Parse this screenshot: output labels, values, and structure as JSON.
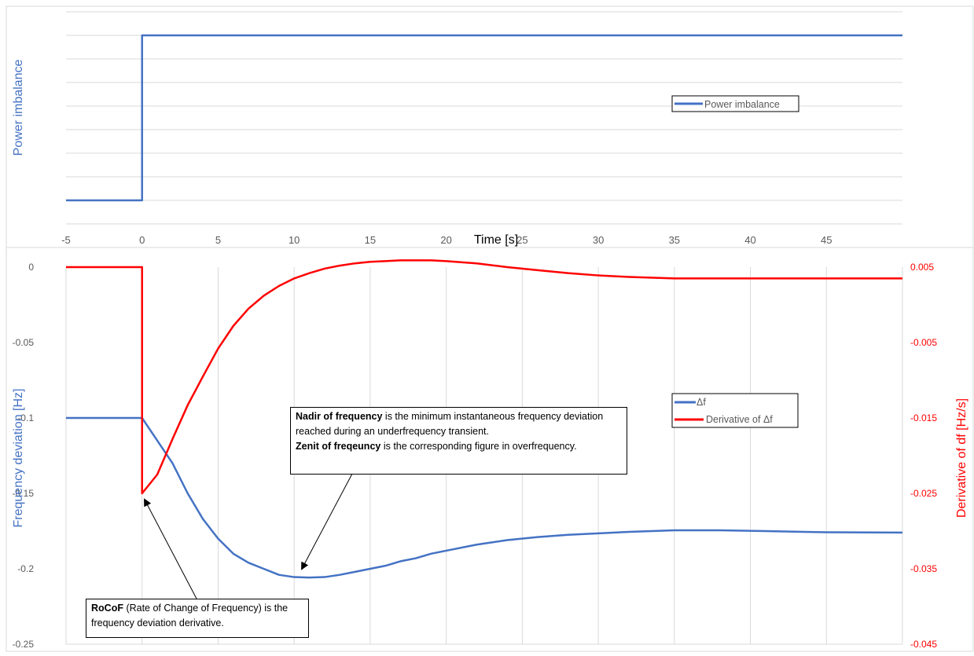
{
  "colors": {
    "power": "#4472C4",
    "delta_f": "#4472C4",
    "derivative": "#FF0000",
    "grid": "#D9D9D9",
    "axis_text": "#595959"
  },
  "chart_data": [
    {
      "type": "line",
      "title": "",
      "xlabel": "Time [s]",
      "ylabel": "Power imbalance",
      "xlim": [
        -5,
        50
      ],
      "x_ticks": [
        "-5",
        "0",
        "5",
        "10",
        "15",
        "20",
        "25",
        "30",
        "35",
        "40",
        "45"
      ],
      "grid": "horizontal",
      "legend": "right-middle",
      "series": [
        {
          "name": "Power imbalance",
          "color": "#4472C4",
          "points": [
            [
              -5,
              0
            ],
            [
              0,
              0
            ],
            [
              0,
              1
            ],
            [
              50,
              1
            ]
          ]
        }
      ]
    },
    {
      "type": "line",
      "title": "",
      "ylabel": "Frequency deviation [Hz]",
      "y2label": "Derivative of df [Hz/s]",
      "xlim": [
        -5,
        50
      ],
      "ylim": [
        -0.25,
        0
      ],
      "y2lim": [
        -0.045,
        0.005
      ],
      "y_ticks": [
        "0",
        "-0.05",
        "-0.1",
        "-0.15",
        "-0.2",
        "-0.25"
      ],
      "y2_ticks": [
        "0.005",
        "-0.005",
        "-0.015",
        "-0.025",
        "-0.035",
        "-0.045"
      ],
      "grid": "vertical",
      "legend": "right-middle",
      "series": [
        {
          "name": "Δf",
          "axis": "left",
          "color": "#4472C4",
          "points": [
            [
              -5,
              -0.1
            ],
            [
              0,
              -0.1
            ],
            [
              1,
              -0.115
            ],
            [
              2,
              -0.13
            ],
            [
              3,
              -0.15
            ],
            [
              4,
              -0.167
            ],
            [
              5,
              -0.18
            ],
            [
              6,
              -0.19
            ],
            [
              7,
              -0.196
            ],
            [
              8,
              -0.2
            ],
            [
              9,
              -0.204
            ],
            [
              10,
              -0.2055
            ],
            [
              11,
              -0.2058
            ],
            [
              12,
              -0.2055
            ],
            [
              13,
              -0.204
            ],
            [
              14,
              -0.202
            ],
            [
              15,
              -0.2
            ],
            [
              16,
              -0.198
            ],
            [
              17,
              -0.195
            ],
            [
              18,
              -0.193
            ],
            [
              19,
              -0.19
            ],
            [
              20,
              -0.188
            ],
            [
              22,
              -0.184
            ],
            [
              24,
              -0.181
            ],
            [
              26,
              -0.179
            ],
            [
              28,
              -0.1775
            ],
            [
              30,
              -0.1765
            ],
            [
              32,
              -0.1755
            ],
            [
              35,
              -0.1745
            ],
            [
              38,
              -0.1745
            ],
            [
              41,
              -0.175
            ],
            [
              45,
              -0.1758
            ],
            [
              50,
              -0.176
            ]
          ]
        },
        {
          "name": "Derivative of Δf",
          "axis": "right",
          "color": "#FF0000",
          "points": [
            [
              -5,
              0.005
            ],
            [
              0,
              0.005
            ],
            [
              0,
              -0.025
            ],
            [
              1,
              -0.0225
            ],
            [
              2,
              -0.0178
            ],
            [
              3,
              -0.0133
            ],
            [
              4,
              -0.0095
            ],
            [
              5,
              -0.0058
            ],
            [
              6,
              -0.0028
            ],
            [
              7,
              -0.0005
            ],
            [
              8,
              0.0012
            ],
            [
              9,
              0.0025
            ],
            [
              10,
              0.0035
            ],
            [
              11,
              0.0042
            ],
            [
              12,
              0.0048
            ],
            [
              13,
              0.0052
            ],
            [
              14,
              0.0055
            ],
            [
              15,
              0.0057
            ],
            [
              16,
              0.0058
            ],
            [
              17,
              0.0059
            ],
            [
              18,
              0.0059
            ],
            [
              19,
              0.0059
            ],
            [
              20,
              0.0058
            ],
            [
              22,
              0.0055
            ],
            [
              24,
              0.005
            ],
            [
              26,
              0.0046
            ],
            [
              28,
              0.0042
            ],
            [
              30,
              0.0039
            ],
            [
              32,
              0.0037
            ],
            [
              35,
              0.0035
            ],
            [
              40,
              0.0035
            ],
            [
              45,
              0.0035
            ],
            [
              50,
              0.0035
            ]
          ]
        }
      ],
      "annotations": [
        {
          "bold": "Nadir of frequency",
          "text": " is the minimum instantaneous frequency deviation reached during an underfrequency transient.",
          "bold2": "Zenit of freqeuncy",
          "text2": " is the corresponding figure in overfrequency.",
          "points_to": [
            10.5,
            -0.2055
          ]
        },
        {
          "bold": "RoCoF",
          "text": " (Rate of Change of Frequency) is the frequency deviation derivative.",
          "points_to": [
            0.3,
            -0.15
          ]
        }
      ]
    }
  ]
}
